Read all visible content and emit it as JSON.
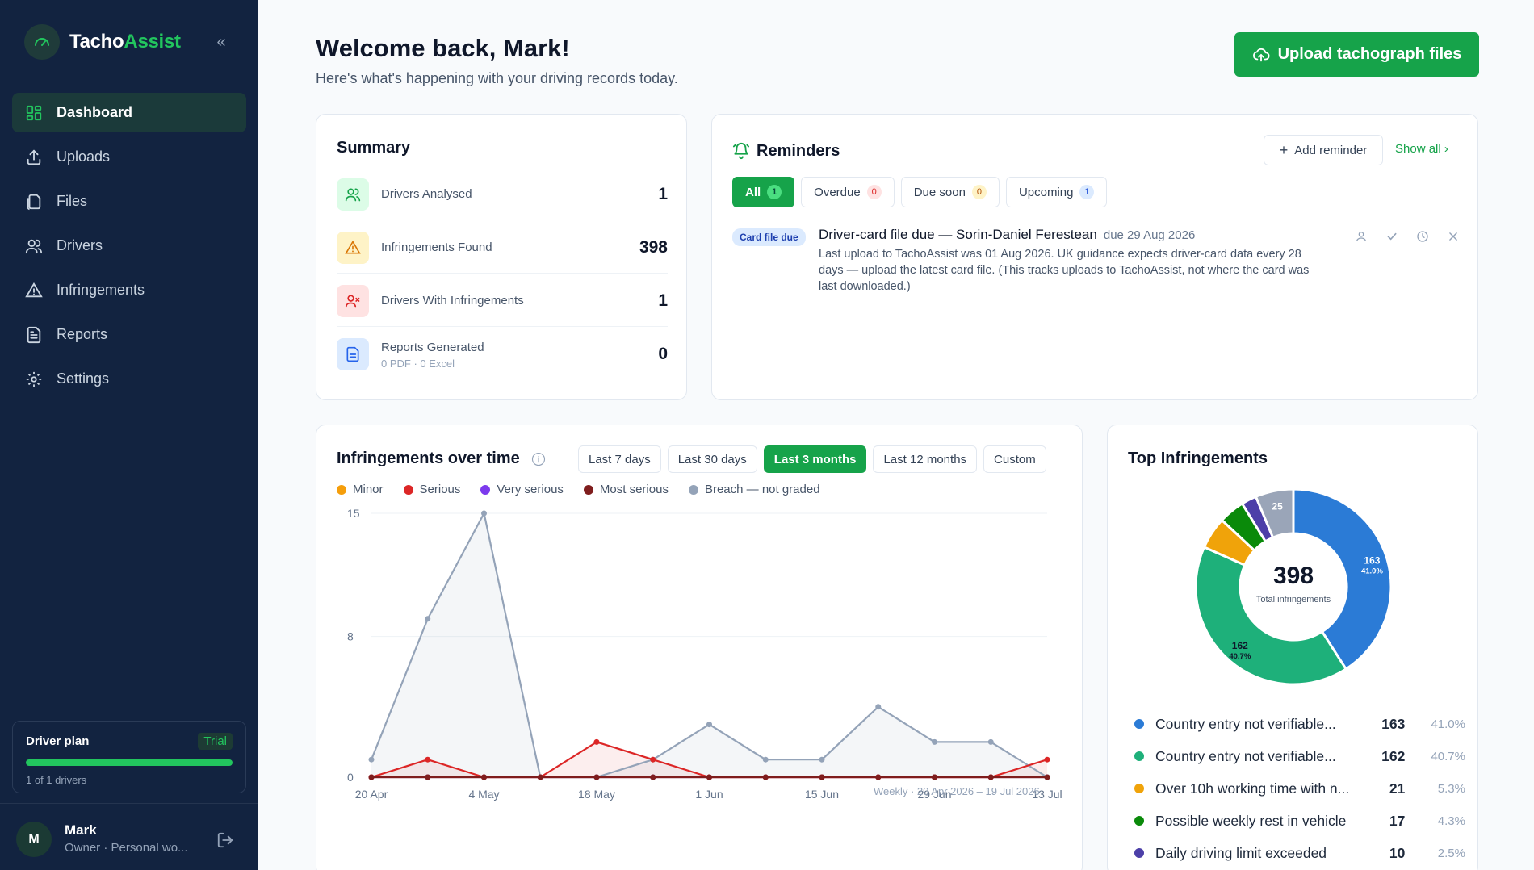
{
  "brand": {
    "name_primary": "Tacho",
    "name_accent": "Assist"
  },
  "sidebar": {
    "items": [
      {
        "label": "Dashboard",
        "icon": "dashboard-icon",
        "active": true
      },
      {
        "label": "Uploads",
        "icon": "upload-icon"
      },
      {
        "label": "Files",
        "icon": "files-icon"
      },
      {
        "label": "Drivers",
        "icon": "drivers-icon"
      },
      {
        "label": "Infringements",
        "icon": "warning-icon"
      },
      {
        "label": "Reports",
        "icon": "report-icon"
      },
      {
        "label": "Settings",
        "icon": "gear-icon"
      }
    ],
    "plan": {
      "title": "Driver plan",
      "badge": "Trial",
      "usage": "1 of 1 drivers",
      "usage_fraction": 1.0
    },
    "user": {
      "initial": "M",
      "name": "Mark",
      "role": "Owner · Personal wo..."
    }
  },
  "header": {
    "title": "Welcome back, Mark!",
    "subtitle": "Here's what's happening with your driving records today.",
    "upload_label": "Upload tachograph files"
  },
  "summary": {
    "title": "Summary",
    "rows": [
      {
        "label": "Drivers Analysed",
        "value": "1"
      },
      {
        "label": "Infringements Found",
        "value": "398"
      },
      {
        "label": "Drivers With Infringements",
        "value": "1"
      },
      {
        "label": "Reports Generated",
        "sub": "0 PDF · 0 Excel",
        "value": "0"
      }
    ]
  },
  "reminders": {
    "title": "Reminders",
    "add_label": "Add reminder",
    "show_all_label": "Show all",
    "filters": [
      {
        "label": "All",
        "count": "1"
      },
      {
        "label": "Overdue",
        "count": "0"
      },
      {
        "label": "Due soon",
        "count": "0"
      },
      {
        "label": "Upcoming",
        "count": "1"
      }
    ],
    "item": {
      "badge": "Card file due",
      "heading": "Driver-card file due — Sorin-Daniel Ferestean",
      "due": "due 29 Aug 2026",
      "body": "Last upload to TachoAssist was 01 Aug 2026. UK guidance expects driver-card data every 28 days — upload the latest card file. (This tracks uploads to TachoAssist, not where the card was last downloaded.)"
    }
  },
  "infringements_chart": {
    "title": "Infringements over time",
    "ranges": [
      "Last 7 days",
      "Last 30 days",
      "Last 3 months",
      "Last 12 months",
      "Custom"
    ],
    "active_range": "Last 3 months",
    "footnote": "Weekly · 20 Apr 2026 – 19 Jul 2026"
  },
  "chart_data": [
    {
      "type": "line",
      "title": "Infringements over time",
      "x": [
        "20 Apr",
        "27 Apr",
        "4 May",
        "11 May",
        "18 May",
        "25 May",
        "1 Jun",
        "8 Jun",
        "15 Jun",
        "22 Jun",
        "29 Jun",
        "6 Jul",
        "13 Jul"
      ],
      "x_tick_labels": [
        "20 Apr",
        "4 May",
        "18 May",
        "1 Jun",
        "15 Jun",
        "29 Jun",
        "13 Jul"
      ],
      "y_ticks": [
        "0",
        "8",
        "15"
      ],
      "ylim": [
        0,
        15
      ],
      "grid": true,
      "legend": "top-left",
      "series": [
        {
          "name": "Minor",
          "color": "#f59e0b",
          "values": [
            0,
            0,
            0,
            0,
            0,
            0,
            0,
            0,
            0,
            0,
            0,
            0,
            0
          ]
        },
        {
          "name": "Serious",
          "color": "#dc2626",
          "values": [
            0,
            1,
            0,
            0,
            2,
            1,
            0,
            0,
            0,
            0,
            0,
            0,
            1
          ]
        },
        {
          "name": "Very serious",
          "color": "#7c3aed",
          "values": [
            0,
            0,
            0,
            0,
            0,
            0,
            0,
            0,
            0,
            0,
            0,
            0,
            0
          ]
        },
        {
          "name": "Most serious",
          "color": "#7f1d1d",
          "values": [
            0,
            0,
            0,
            0,
            0,
            0,
            0,
            0,
            0,
            0,
            0,
            0,
            0
          ]
        },
        {
          "name": "Breach — not graded",
          "color": "#94a3b8",
          "values": [
            1,
            9,
            15,
            0,
            0,
            1,
            3,
            1,
            1,
            4,
            2,
            2,
            0
          ]
        }
      ]
    },
    {
      "type": "pie",
      "title": "Top Infringements",
      "center_value": "398",
      "center_label": "Total infringements",
      "series": [
        {
          "name": "Country entry not verifiable...",
          "value": 163,
          "pct": "41.0%",
          "color": "#2b7bd6"
        },
        {
          "name": "Country entry not verifiable...",
          "value": 162,
          "pct": "40.7%",
          "color": "#1eb07a"
        },
        {
          "name": "Over 10h working time with n...",
          "value": 21,
          "pct": "5.3%",
          "color": "#f0a30a"
        },
        {
          "name": "Possible weekly rest in vehicle",
          "value": 17,
          "pct": "4.3%",
          "color": "#0a8a0a"
        },
        {
          "name": "Daily driving limit exceeded",
          "value": 10,
          "pct": "2.5%",
          "color": "#4c3fa8"
        },
        {
          "name": "",
          "value": 25,
          "color": "#9aa5b8"
        }
      ],
      "slice_labels": [
        {
          "value": "163",
          "pct": "41.0%"
        },
        {
          "value": "162",
          "pct": "40.7%"
        },
        {
          "value": "25"
        }
      ]
    }
  ]
}
